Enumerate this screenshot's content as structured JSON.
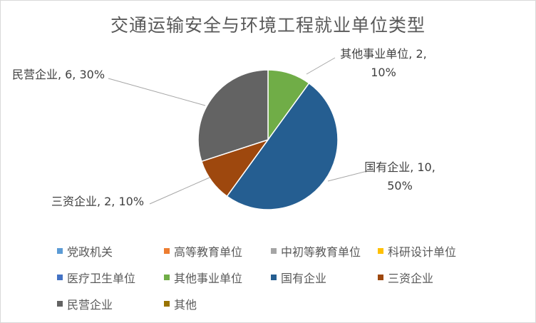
{
  "chart_data": {
    "type": "pie",
    "title": "交通运输安全与环境工程就业单位类型",
    "slices": [
      {
        "name": "党政机关",
        "value": 0,
        "color": "#5b9bd5"
      },
      {
        "name": "高等教育单位",
        "value": 0,
        "color": "#ed7d31"
      },
      {
        "name": "中初等教育单位",
        "value": 0,
        "color": "#a5a5a5"
      },
      {
        "name": "科研设计单位",
        "value": 0,
        "color": "#ffc000"
      },
      {
        "name": "医疗卫生单位",
        "value": 0,
        "color": "#4472c4"
      },
      {
        "name": "其他事业单位",
        "value": 2,
        "percent": "10%",
        "color": "#70ad47"
      },
      {
        "name": "国有企业",
        "value": 10,
        "percent": "50%",
        "color": "#255e91"
      },
      {
        "name": "三资企业",
        "value": 2,
        "percent": "10%",
        "color": "#9e480e"
      },
      {
        "name": "民营企业",
        "value": 6,
        "percent": "30%",
        "color": "#636363"
      },
      {
        "name": "其他",
        "value": 0,
        "color": "#997300"
      }
    ],
    "data_labels": [
      {
        "lines": [
          "其他事业单位, 2,",
          "10%"
        ]
      },
      {
        "lines": [
          "国有企业, 10,",
          "50%"
        ]
      },
      {
        "lines": [
          "三资企业, 2, 10%"
        ]
      },
      {
        "lines": [
          "民营企业, 6, 30%"
        ]
      }
    ],
    "legend_position": "bottom"
  }
}
